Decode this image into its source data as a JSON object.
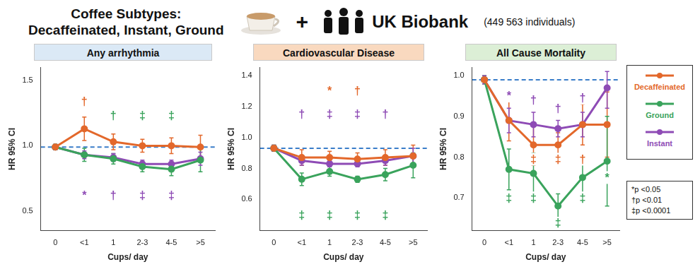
{
  "header": {
    "title": [
      "Coffee Subtypes:",
      "Decaffeinated, Instant, Ground"
    ],
    "plus": "+",
    "source": "UK Biobank",
    "sample": "(449 563 individuals)"
  },
  "significance_key": [
    "*p <0.05",
    "†p <0.01",
    "‡p <0.0001"
  ],
  "chart_data": [
    {
      "type": "line",
      "title": "Any arrhythmia",
      "x_label": "Cups/ day",
      "y_label": "HR 95% CI",
      "categories": [
        "0",
        "<1",
        "1",
        "2-3",
        "4-5",
        ">5"
      ],
      "ylim": [
        0.35,
        1.6
      ],
      "yticks": [
        {
          "value": 0.5,
          "label": "0.5"
        },
        {
          "value": 1.0,
          "label": "1.0"
        },
        {
          "value": 1.5,
          "label": "1.5"
        }
      ],
      "grid": false,
      "legend": "right",
      "marker": "circle",
      "line_style": "solid",
      "reference_line": {
        "value": 0.99,
        "color": "#3a7dc9",
        "line_style": "dashed"
      },
      "series": [
        {
          "name": "Decaffeinated",
          "color": "#e3682b",
          "values": [
            0.99,
            1.13,
            1.03,
            1.0,
            1.0,
            0.99
          ],
          "lower": [
            0.97,
            1.04,
            0.97,
            0.95,
            0.94,
            0.9
          ],
          "upper": [
            1.01,
            1.22,
            1.09,
            1.05,
            1.06,
            1.08
          ]
        },
        {
          "name": "Ground",
          "color": "#3aa35c",
          "values": [
            0.99,
            0.93,
            0.9,
            0.84,
            0.82,
            0.89
          ],
          "lower": [
            0.97,
            0.88,
            0.86,
            0.8,
            0.77,
            0.8
          ],
          "upper": [
            1.01,
            0.98,
            0.94,
            0.88,
            0.87,
            0.98
          ]
        },
        {
          "name": "Instant",
          "color": "#8e4bb5",
          "values": [
            0.99,
            0.93,
            0.91,
            0.86,
            0.86,
            0.9
          ],
          "lower": [
            0.97,
            0.9,
            0.88,
            0.83,
            0.83,
            0.85
          ],
          "upper": [
            1.01,
            0.96,
            0.94,
            0.89,
            0.89,
            0.95
          ]
        }
      ],
      "annotations": [
        {
          "text": "†",
          "color": "#e3682b",
          "category": "<1",
          "y": 1.34
        },
        {
          "text": "†",
          "color": "#3aa35c",
          "category": "1",
          "y": 1.23
        },
        {
          "text": "‡",
          "color": "#3aa35c",
          "category": "2-3",
          "y": 1.23
        },
        {
          "text": "‡",
          "color": "#3aa35c",
          "category": "4-5",
          "y": 1.23
        },
        {
          "text": "*",
          "color": "#8e4bb5",
          "category": "<1",
          "y": 0.62
        },
        {
          "text": "†",
          "color": "#8e4bb5",
          "category": "1",
          "y": 0.62
        },
        {
          "text": "‡",
          "color": "#8e4bb5",
          "category": "2-3",
          "y": 0.62
        },
        {
          "text": "‡",
          "color": "#8e4bb5",
          "category": "4-5",
          "y": 0.62
        }
      ]
    },
    {
      "type": "line",
      "title": "Cardiovascular Disease",
      "x_label": "Cups/ day",
      "y_label": "HR 95% CI",
      "categories": [
        "0",
        "<1",
        "1",
        "2-3",
        "4-5",
        ">5"
      ],
      "ylim": [
        0.4,
        1.45
      ],
      "yticks": [
        {
          "value": 0.6,
          "label": "0.6"
        },
        {
          "value": 0.8,
          "label": "0.8"
        },
        {
          "value": 1.0,
          "label": "1.0"
        },
        {
          "value": 1.2,
          "label": "1.2"
        },
        {
          "value": 1.4,
          "label": "1.4"
        }
      ],
      "grid": false,
      "marker": "circle",
      "line_style": "solid",
      "reference_line": {
        "value": 0.93,
        "color": "#3a7dc9",
        "line_style": "dashed"
      },
      "series": [
        {
          "name": "Decaffeinated",
          "color": "#e3682b",
          "values": [
            0.93,
            0.87,
            0.87,
            0.86,
            0.87,
            0.88
          ],
          "lower": [
            0.91,
            0.82,
            0.83,
            0.82,
            0.82,
            0.81
          ],
          "upper": [
            0.95,
            0.92,
            0.91,
            0.9,
            0.92,
            0.95
          ]
        },
        {
          "name": "Ground",
          "color": "#3aa35c",
          "values": [
            0.93,
            0.73,
            0.78,
            0.73,
            0.76,
            0.82
          ],
          "lower": [
            0.91,
            0.69,
            0.75,
            0.71,
            0.72,
            0.74
          ],
          "upper": [
            0.95,
            0.77,
            0.81,
            0.75,
            0.8,
            0.9
          ]
        },
        {
          "name": "Instant",
          "color": "#8e4bb5",
          "values": [
            0.93,
            0.85,
            0.83,
            0.83,
            0.85,
            0.88
          ],
          "lower": [
            0.91,
            0.82,
            0.81,
            0.81,
            0.82,
            0.83
          ],
          "upper": [
            0.95,
            0.88,
            0.85,
            0.85,
            0.88,
            0.93
          ]
        }
      ],
      "annotations": [
        {
          "text": "*",
          "color": "#e3682b",
          "category": "1",
          "y": 1.3
        },
        {
          "text": "†",
          "color": "#e3682b",
          "category": "2-3",
          "y": 1.3
        },
        {
          "text": "†",
          "color": "#8e4bb5",
          "category": "<1",
          "y": 1.15
        },
        {
          "text": "‡",
          "color": "#8e4bb5",
          "category": "1",
          "y": 1.15
        },
        {
          "text": "‡",
          "color": "#8e4bb5",
          "category": "2-3",
          "y": 1.15
        },
        {
          "text": "†",
          "color": "#8e4bb5",
          "category": "4-5",
          "y": 1.15
        },
        {
          "text": "‡",
          "color": "#3aa35c",
          "category": "<1",
          "y": 0.5
        },
        {
          "text": "‡",
          "color": "#3aa35c",
          "category": "1",
          "y": 0.5
        },
        {
          "text": "‡",
          "color": "#3aa35c",
          "category": "2-3",
          "y": 0.5
        },
        {
          "text": "‡",
          "color": "#3aa35c",
          "category": "4-5",
          "y": 0.5
        }
      ]
    },
    {
      "type": "line",
      "title": "All Cause Mortality",
      "x_label": "Cups/ day",
      "y_label": "HR 95% CI",
      "categories": [
        "0",
        "<1",
        "1",
        "2-3",
        "4-5",
        ">5"
      ],
      "ylim": [
        0.62,
        1.02
      ],
      "yticks": [
        {
          "value": 0.7,
          "label": "0.7"
        },
        {
          "value": 0.8,
          "label": "0.8"
        },
        {
          "value": 0.9,
          "label": "0.9"
        },
        {
          "value": 1.0,
          "label": "1.0"
        }
      ],
      "grid": false,
      "marker": "circle",
      "line_style": "solid",
      "reference_line": {
        "value": 0.99,
        "color": "#3a7dc9",
        "line_style": "dashed"
      },
      "series": [
        {
          "name": "Decaffeinated",
          "color": "#e3682b",
          "values": [
            0.99,
            0.89,
            0.83,
            0.83,
            0.88,
            0.88
          ],
          "lower": [
            0.98,
            0.84,
            0.78,
            0.8,
            0.83,
            0.8
          ],
          "upper": [
            1.0,
            0.94,
            0.88,
            0.86,
            0.93,
            0.96
          ]
        },
        {
          "name": "Ground",
          "color": "#3aa35c",
          "values": [
            0.99,
            0.77,
            0.76,
            0.68,
            0.75,
            0.79
          ],
          "lower": [
            0.98,
            0.72,
            0.71,
            0.65,
            0.7,
            0.68
          ],
          "upper": [
            1.0,
            0.82,
            0.81,
            0.71,
            0.8,
            0.9
          ]
        },
        {
          "name": "Instant",
          "color": "#8e4bb5",
          "values": [
            0.99,
            0.89,
            0.88,
            0.87,
            0.88,
            0.97
          ],
          "lower": [
            0.98,
            0.86,
            0.85,
            0.85,
            0.85,
            0.92
          ],
          "upper": [
            1.0,
            0.92,
            0.91,
            0.89,
            0.91,
            1.01
          ]
        }
      ],
      "annotations": [
        {
          "text": "*",
          "color": "#8e4bb5",
          "category": "<1",
          "y": 0.95
        },
        {
          "text": "†",
          "color": "#8e4bb5",
          "category": "1",
          "y": 0.94
        },
        {
          "text": "†",
          "color": "#8e4bb5",
          "category": "2-3",
          "y": 0.92
        },
        {
          "text": "†",
          "color": "#8e4bb5",
          "category": "4-5",
          "y": 0.945
        },
        {
          "text": "‡",
          "color": "#e3682b",
          "category": "1",
          "y": 0.795
        },
        {
          "text": "‡",
          "color": "#e3682b",
          "category": "2-3",
          "y": 0.795
        },
        {
          "text": "†",
          "color": "#e3682b",
          "category": "4-5",
          "y": 0.795
        },
        {
          "text": "‡",
          "color": "#3aa35c",
          "category": "<1",
          "y": 0.7
        },
        {
          "text": "‡",
          "color": "#3aa35c",
          "category": "1",
          "y": 0.7
        },
        {
          "text": "‡",
          "color": "#3aa35c",
          "category": "2-3",
          "y": 0.638
        },
        {
          "text": "‡",
          "color": "#3aa35c",
          "category": "4-5",
          "y": 0.7
        },
        {
          "text": "*",
          "color": "#3aa35c",
          "category": ">5",
          "y": 0.75
        }
      ]
    }
  ]
}
